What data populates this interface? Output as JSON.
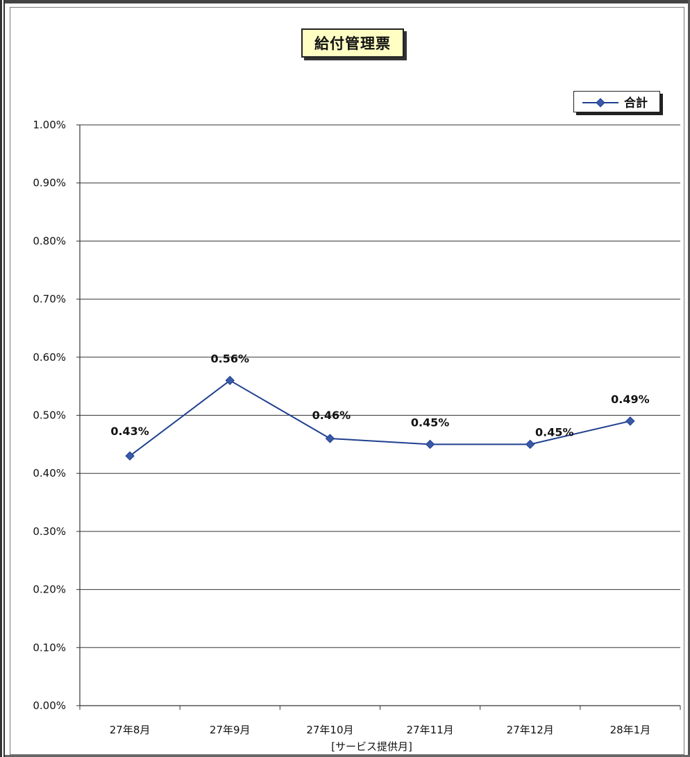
{
  "chart_data": {
    "type": "line",
    "title": "給付管理票",
    "xlabel": "[サービス提供月]",
    "ylabel": "",
    "categories": [
      "27年8月",
      "27年9月",
      "27年10月",
      "27年11月",
      "27年12月",
      "28年1月"
    ],
    "series": [
      {
        "name": "合計",
        "values": [
          0.43,
          0.56,
          0.46,
          0.45,
          0.45,
          0.49
        ],
        "labels": [
          "0.43%",
          "0.56%",
          "0.46%",
          "0.45%",
          "0.45%",
          "0.49%"
        ],
        "color": "#1f3f8f",
        "marker_color": "#3a5aa8"
      }
    ],
    "yticks": [
      "0.00%",
      "0.10%",
      "0.20%",
      "0.30%",
      "0.40%",
      "0.50%",
      "0.60%",
      "0.70%",
      "0.80%",
      "0.90%",
      "1.00%"
    ],
    "ylim": [
      0,
      1.0
    ],
    "grid": true,
    "legend": "top-right"
  }
}
